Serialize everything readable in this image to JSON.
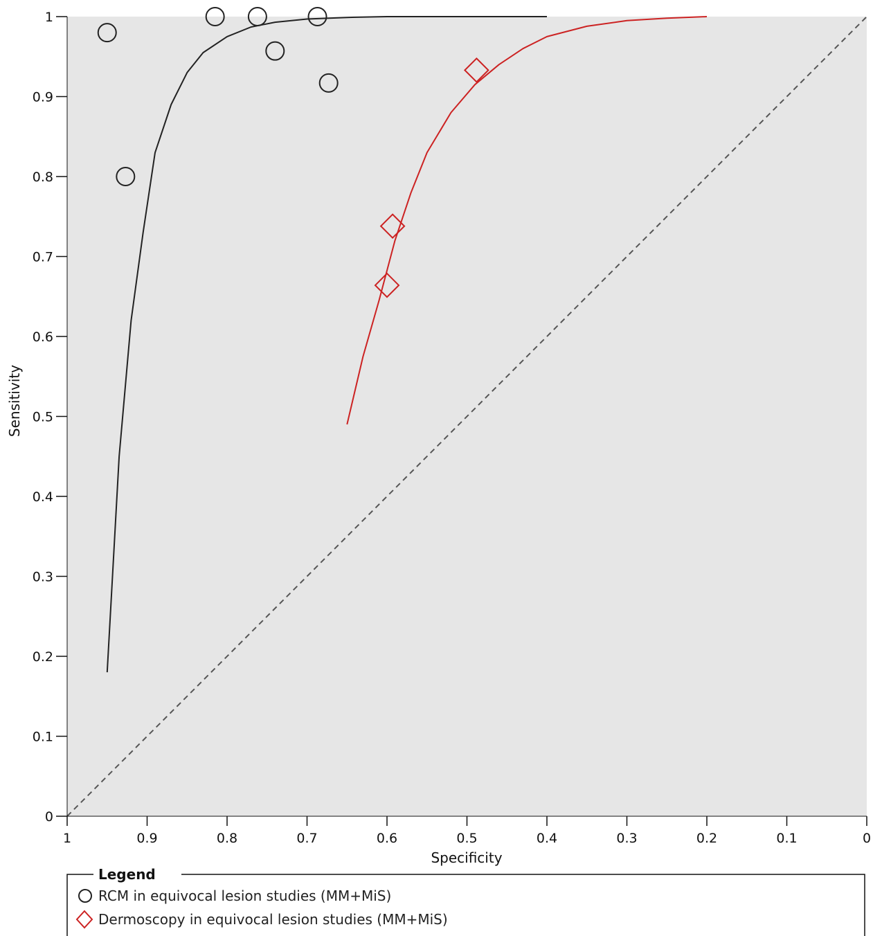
{
  "chart_data": {
    "type": "scatter",
    "xlabel": "Specificity",
    "ylabel": "Sensitivity",
    "xlim": [
      1,
      0
    ],
    "ylim": [
      0,
      1
    ],
    "x_reversed": true,
    "grid": false,
    "xticks": [
      "1",
      "0.9",
      "0.8",
      "0.7",
      "0.6",
      "0.5",
      "0.4",
      "0.3",
      "0.2",
      "0.1",
      "0"
    ],
    "yticks": [
      "0",
      "0.1",
      "0.2",
      "0.3",
      "0.4",
      "0.5",
      "0.6",
      "0.7",
      "0.8",
      "0.9",
      "1"
    ],
    "reference_line": {
      "from": [
        1,
        0
      ],
      "to": [
        0,
        1
      ],
      "style": "dashed"
    },
    "legend": {
      "title": "Legend",
      "placement": "bottom"
    },
    "series": [
      {
        "name": "RCM in equivocal lesion studies (MM+MiS)",
        "marker": "circle",
        "color": "#222222",
        "points": [
          {
            "x": 0.95,
            "y": 0.98
          },
          {
            "x": 0.927,
            "y": 0.8
          },
          {
            "x": 0.815,
            "y": 1.0
          },
          {
            "x": 0.762,
            "y": 1.0
          },
          {
            "x": 0.74,
            "y": 0.957
          },
          {
            "x": 0.687,
            "y": 1.0
          },
          {
            "x": 0.673,
            "y": 0.917
          }
        ],
        "curve": [
          {
            "x": 0.95,
            "y": 0.18
          },
          {
            "x": 0.935,
            "y": 0.45
          },
          {
            "x": 0.92,
            "y": 0.62
          },
          {
            "x": 0.905,
            "y": 0.73
          },
          {
            "x": 0.89,
            "y": 0.83
          },
          {
            "x": 0.87,
            "y": 0.89
          },
          {
            "x": 0.85,
            "y": 0.93
          },
          {
            "x": 0.83,
            "y": 0.955
          },
          {
            "x": 0.8,
            "y": 0.975
          },
          {
            "x": 0.77,
            "y": 0.987
          },
          {
            "x": 0.74,
            "y": 0.993
          },
          {
            "x": 0.7,
            "y": 0.997
          },
          {
            "x": 0.65,
            "y": 0.999
          },
          {
            "x": 0.6,
            "y": 1.0
          },
          {
            "x": 0.4,
            "y": 1.0
          }
        ]
      },
      {
        "name": "Dermoscopy in equivocal lesion studies (MM+MiS)",
        "marker": "diamond",
        "color": "#cc2222",
        "points": [
          {
            "x": 0.488,
            "y": 0.933
          },
          {
            "x": 0.593,
            "y": 0.738
          },
          {
            "x": 0.6,
            "y": 0.664
          }
        ],
        "curve": [
          {
            "x": 0.65,
            "y": 0.49
          },
          {
            "x": 0.63,
            "y": 0.575
          },
          {
            "x": 0.61,
            "y": 0.645
          },
          {
            "x": 0.59,
            "y": 0.72
          },
          {
            "x": 0.57,
            "y": 0.78
          },
          {
            "x": 0.55,
            "y": 0.83
          },
          {
            "x": 0.52,
            "y": 0.88
          },
          {
            "x": 0.49,
            "y": 0.915
          },
          {
            "x": 0.46,
            "y": 0.94
          },
          {
            "x": 0.43,
            "y": 0.96
          },
          {
            "x": 0.4,
            "y": 0.975
          },
          {
            "x": 0.35,
            "y": 0.988
          },
          {
            "x": 0.3,
            "y": 0.995
          },
          {
            "x": 0.25,
            "y": 0.998
          },
          {
            "x": 0.2,
            "y": 1.0
          }
        ]
      }
    ]
  }
}
